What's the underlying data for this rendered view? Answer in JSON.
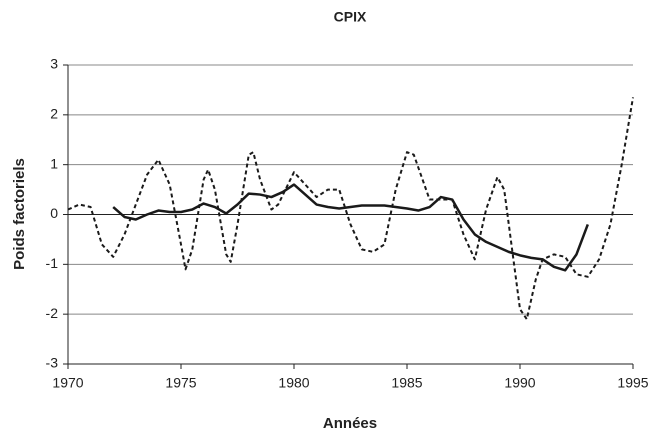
{
  "chart_data": {
    "type": "line",
    "title": "CPIX",
    "x_label": "Années",
    "y_label": "Poids factoriels",
    "xlim": [
      1970,
      1995
    ],
    "xticks": [
      1970,
      1975,
      1980,
      1985,
      1990,
      1995
    ],
    "ylim": [
      -3,
      3
    ],
    "yticks": [
      -3,
      -2,
      -1,
      0,
      1,
      2,
      3
    ],
    "grid": true,
    "series": [
      {
        "color": "#1a1a1a",
        "line_style": "dashed",
        "x": [
          1970,
          1970.5,
          1971,
          1971.5,
          1972,
          1972.5,
          1973,
          1973.5,
          1974,
          1974.5,
          1975,
          1975.2,
          1975.5,
          1976,
          1976.2,
          1976.5,
          1977,
          1977.2,
          1977.5,
          1978,
          1978.2,
          1978.5,
          1979,
          1979.3,
          1980,
          1980.5,
          1981,
          1981.5,
          1982,
          1982.5,
          1983,
          1983.5,
          1984,
          1984.5,
          1985,
          1985.3,
          1986,
          1986.5,
          1987,
          1987.5,
          1988,
          1988.5,
          1989,
          1989.3,
          1990,
          1990.3,
          1990.7,
          1991,
          1991.5,
          1992,
          1992.5,
          1993,
          1993.5,
          1994,
          1994.5,
          1995
        ],
        "values": [
          0.1,
          0.2,
          0.15,
          -0.6,
          -0.85,
          -0.4,
          0.2,
          0.8,
          1.1,
          0.6,
          -0.6,
          -1.1,
          -0.7,
          0.7,
          0.9,
          0.5,
          -0.8,
          -0.95,
          -0.2,
          1.2,
          1.25,
          0.7,
          0.1,
          0.2,
          0.85,
          0.6,
          0.35,
          0.5,
          0.5,
          -0.2,
          -0.7,
          -0.75,
          -0.6,
          0.5,
          1.25,
          1.2,
          0.3,
          0.3,
          0.3,
          -0.4,
          -0.9,
          0.1,
          0.75,
          0.5,
          -1.9,
          -2.1,
          -1.3,
          -0.9,
          -0.8,
          -0.85,
          -1.2,
          -1.25,
          -0.9,
          -0.2,
          1.0,
          2.35
        ]
      },
      {
        "color": "#1a1a1a",
        "line_style": "solid",
        "x": [
          1972,
          1972.5,
          1973,
          1973.5,
          1974,
          1974.5,
          1975,
          1975.5,
          1976,
          1976.5,
          1977,
          1977.5,
          1978,
          1978.5,
          1979,
          1979.5,
          1980,
          1980.5,
          1981,
          1981.5,
          1982,
          1983,
          1984,
          1985,
          1985.5,
          1986,
          1986.5,
          1987,
          1987.5,
          1988,
          1988.5,
          1989,
          1989.5,
          1990,
          1990.5,
          1991,
          1991.5,
          1992,
          1992.5,
          1993
        ],
        "values": [
          0.15,
          -0.05,
          -0.1,
          0.0,
          0.08,
          0.05,
          0.05,
          0.1,
          0.22,
          0.15,
          0.02,
          0.2,
          0.42,
          0.4,
          0.35,
          0.45,
          0.6,
          0.4,
          0.2,
          0.15,
          0.12,
          0.18,
          0.18,
          0.12,
          0.08,
          0.15,
          0.35,
          0.3,
          -0.1,
          -0.4,
          -0.55,
          -0.65,
          -0.75,
          -0.82,
          -0.87,
          -0.9,
          -1.05,
          -1.12,
          -0.8,
          -0.2
        ]
      }
    ]
  }
}
